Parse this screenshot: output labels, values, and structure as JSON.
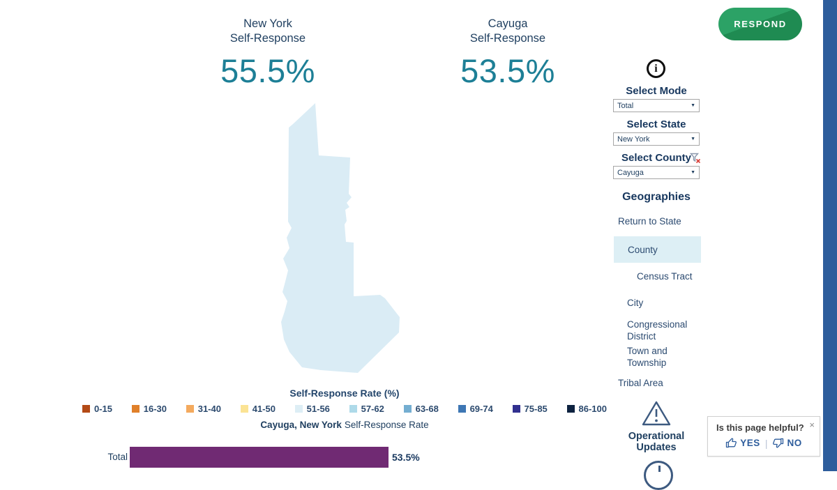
{
  "header": {
    "stats": [
      {
        "title_line1": "New York",
        "title_line2": "Self-Response",
        "value": "55.5%"
      },
      {
        "title_line1": "Cayuga",
        "title_line2": "Self-Response",
        "value": "53.5%"
      }
    ],
    "respond_button": "RESPOND"
  },
  "controls": {
    "info_icon": "info-icon",
    "mode": {
      "label": "Select Mode",
      "value": "Total"
    },
    "state": {
      "label": "Select State",
      "value": "New York"
    },
    "county": {
      "label": "Select County",
      "value": "Cayuga"
    }
  },
  "geographies": {
    "heading": "Geographies",
    "active_item": "County",
    "items": [
      {
        "label": "Return to State"
      },
      {
        "label": "County"
      },
      {
        "label": "Census Tract"
      },
      {
        "label": "City"
      },
      {
        "label": "Congressional District"
      },
      {
        "label": "Town and Township"
      },
      {
        "label": "Tribal Area"
      }
    ]
  },
  "operational_updates": {
    "label": "Operational Updates"
  },
  "legend": {
    "title": "Self-Response Rate (%)",
    "buckets": [
      {
        "range": "0-15",
        "color": "#b34a16"
      },
      {
        "range": "16-30",
        "color": "#e0802a"
      },
      {
        "range": "31-40",
        "color": "#f4aa5e"
      },
      {
        "range": "41-50",
        "color": "#fbe394"
      },
      {
        "range": "51-56",
        "color": "#ddeef5"
      },
      {
        "range": "57-62",
        "color": "#aedae9"
      },
      {
        "range": "63-68",
        "color": "#74aed1"
      },
      {
        "range": "69-74",
        "color": "#3e77b4"
      },
      {
        "range": "75-85",
        "color": "#31308f"
      },
      {
        "range": "86-100",
        "color": "#0d2240"
      }
    ]
  },
  "map": {
    "fill": "#daecf5"
  },
  "chart_data": {
    "type": "bar",
    "title_bold": "Cayuga, New York",
    "title_rest": "Self-Response Rate",
    "categories": [
      "Total"
    ],
    "values": [
      53.5
    ],
    "value_labels": [
      "53.5%"
    ],
    "xlim": [
      0,
      100
    ],
    "bar_color": "#702a73",
    "legend_position": "above",
    "grid": false
  },
  "feedback": {
    "question": "Is this page helpful?",
    "yes_label": "YES",
    "no_label": "NO",
    "close_glyph": "×"
  },
  "colors": {
    "accent_teal": "#1d7f96",
    "navy": "#1e3e5f",
    "stripe_blue": "#2d5d9c",
    "active_highlight": "#ddeff5",
    "green_light": "#2ca266",
    "green_dark": "#1f8b52"
  }
}
